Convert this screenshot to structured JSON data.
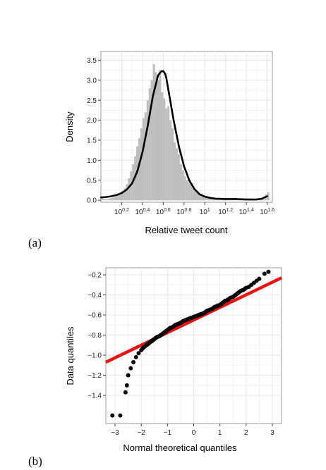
{
  "chart_data": [
    {
      "panel_label": "(a)",
      "type": "histogram+density",
      "xlabel": "Relative tweet count",
      "ylabel": "Density",
      "x_scale": "log10",
      "xlim_log10": [
        0.0,
        1.65
      ],
      "ylim": [
        -0.05,
        3.72
      ],
      "x_ticks": [
        {
          "value": 0.2,
          "base": "10",
          "exp": "0.2"
        },
        {
          "value": 0.4,
          "base": "10",
          "exp": "0.4"
        },
        {
          "value": 0.6,
          "base": "10",
          "exp": "0.6"
        },
        {
          "value": 0.8,
          "base": "10",
          "exp": "0.8"
        },
        {
          "value": 1.0,
          "base": "10",
          "exp": "1"
        },
        {
          "value": 1.2,
          "base": "10",
          "exp": "1.2"
        },
        {
          "value": 1.4,
          "base": "10",
          "exp": "1.4"
        },
        {
          "value": 1.6,
          "base": "10",
          "exp": "1.6"
        }
      ],
      "y_ticks": [
        {
          "value": 0.0,
          "label": "0.0"
        },
        {
          "value": 0.5,
          "label": "0.5"
        },
        {
          "value": 1.0,
          "label": "1.0"
        },
        {
          "value": 1.5,
          "label": "1.5"
        },
        {
          "value": 2.0,
          "label": "2.0"
        },
        {
          "value": 2.5,
          "label": "2.5"
        },
        {
          "value": 3.0,
          "label": "3.0"
        },
        {
          "value": 3.5,
          "label": "3.5"
        }
      ],
      "grid": true,
      "histogram": {
        "bin_start_log10": 0.0,
        "bin_width_log10": 0.02,
        "values": [
          0.05,
          0.03,
          0.02,
          0.03,
          0.05,
          0.06,
          0.08,
          0.12,
          0.15,
          0.18,
          0.23,
          0.3,
          0.4,
          0.55,
          0.72,
          0.9,
          1.1,
          1.35,
          1.55,
          1.8,
          2.05,
          2.2,
          2.5,
          2.8,
          3.0,
          3.4,
          3.2,
          3.0,
          3.25,
          2.7,
          2.55,
          2.3,
          2.35,
          2.0,
          1.8,
          1.45,
          1.3,
          1.15,
          0.9,
          0.75,
          0.6,
          0.5,
          0.45,
          0.4,
          0.3,
          0.25,
          0.2,
          0.15,
          0.12,
          0.1,
          0.08,
          0.06,
          0.05,
          0.05,
          0.04,
          0.04,
          0.03,
          0.03,
          0.03,
          0.02,
          0.03,
          0.02,
          0.02,
          0.02,
          0.02,
          0.02,
          0.02,
          0.02,
          0.02,
          0.02,
          0.02,
          0.02,
          0.02,
          0.02,
          0.02,
          0.02,
          0.02,
          0.03,
          0.02,
          0.15,
          0.2
        ]
      },
      "density_curve": {
        "x_log10": [
          0.0,
          0.05,
          0.1,
          0.15,
          0.2,
          0.25,
          0.3,
          0.35,
          0.4,
          0.45,
          0.5,
          0.55,
          0.58,
          0.6,
          0.62,
          0.63,
          0.65,
          0.7,
          0.75,
          0.8,
          0.85,
          0.9,
          0.95,
          1.0,
          1.05,
          1.1,
          1.2,
          1.3,
          1.4,
          1.5,
          1.55,
          1.6
        ],
        "y": [
          0.07,
          0.08,
          0.1,
          0.13,
          0.18,
          0.27,
          0.42,
          0.72,
          1.2,
          1.85,
          2.6,
          3.12,
          3.22,
          3.23,
          3.15,
          3.05,
          2.75,
          2.0,
          1.35,
          0.85,
          0.5,
          0.28,
          0.15,
          0.09,
          0.06,
          0.04,
          0.03,
          0.03,
          0.02,
          0.02,
          0.04,
          0.1
        ]
      },
      "line_color": "#000000",
      "bar_color": "#bdbdbd"
    },
    {
      "panel_label": "(b)",
      "type": "qq",
      "xlabel": "Normal theoretical quantiles",
      "ylabel": "Data quantiles",
      "xlim": [
        -3.35,
        3.35
      ],
      "ylim": [
        -1.68,
        -0.13
      ],
      "x_ticks": [
        -3,
        -2,
        -1,
        0,
        1,
        2,
        3
      ],
      "x_tick_labels": [
        "−3",
        "−2",
        "−1",
        "0",
        "1",
        "2",
        "3"
      ],
      "y_ticks": [
        -0.2,
        -0.4,
        -0.6,
        -0.8,
        -1.0,
        -1.2,
        -1.4
      ],
      "y_tick_labels": [
        "−0.2",
        "−0.4",
        "−0.6",
        "−0.8",
        "−1.0",
        "−1.2",
        "−1.4"
      ],
      "grid": true,
      "reference_line": {
        "x": [
          -3.35,
          3.35
        ],
        "y": [
          -1.07,
          -0.23
        ],
        "color": "#ee1111"
      },
      "points": {
        "x": [
          -3.1,
          -2.8,
          -2.6,
          -2.55,
          -2.5,
          -2.4,
          -2.3,
          -2.2,
          -2.1,
          -2.0,
          -1.9,
          -1.8,
          -1.7,
          -1.6,
          -1.5,
          -1.4,
          -1.3,
          -1.2,
          -1.1,
          -1.0,
          -0.9,
          -0.8,
          -0.7,
          -0.6,
          -0.5,
          -0.4,
          -0.3,
          -0.2,
          -0.1,
          0.0,
          0.1,
          0.2,
          0.3,
          0.4,
          0.5,
          0.6,
          0.7,
          0.8,
          0.9,
          1.0,
          1.1,
          1.2,
          1.3,
          1.4,
          1.5,
          1.6,
          1.7,
          1.8,
          1.9,
          2.0,
          2.1,
          2.2,
          2.3,
          2.4,
          2.5,
          2.7,
          2.85
        ],
        "y": [
          -1.6,
          -1.6,
          -1.37,
          -1.3,
          -1.2,
          -1.13,
          -1.07,
          -1.02,
          -0.98,
          -0.95,
          -0.92,
          -0.9,
          -0.88,
          -0.86,
          -0.84,
          -0.82,
          -0.81,
          -0.79,
          -0.77,
          -0.75,
          -0.73,
          -0.72,
          -0.7,
          -0.69,
          -0.68,
          -0.66,
          -0.65,
          -0.64,
          -0.63,
          -0.62,
          -0.61,
          -0.6,
          -0.59,
          -0.58,
          -0.56,
          -0.55,
          -0.54,
          -0.52,
          -0.51,
          -0.5,
          -0.48,
          -0.46,
          -0.45,
          -0.43,
          -0.42,
          -0.4,
          -0.38,
          -0.36,
          -0.35,
          -0.33,
          -0.32,
          -0.3,
          -0.28,
          -0.26,
          -0.24,
          -0.19,
          -0.17
        ]
      },
      "point_color": "#000000"
    }
  ]
}
